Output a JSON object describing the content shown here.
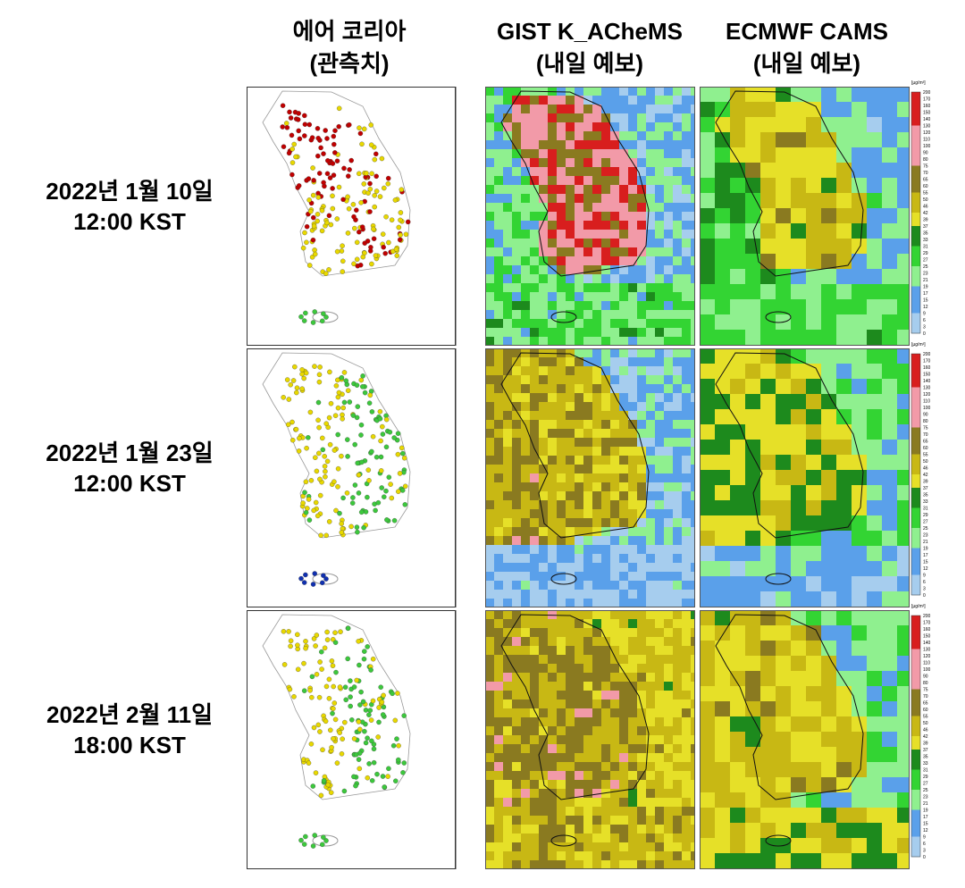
{
  "columns": [
    {
      "title": "에어 코리아",
      "subtitle": "(관측치)"
    },
    {
      "title": "GIST K_ACheMS",
      "subtitle": "(내일 예보)"
    },
    {
      "title": "ECMWF CAMS",
      "subtitle": "(내일 예보)"
    }
  ],
  "rows": [
    {
      "date": "2022년 1월 10일",
      "time": "12:00 KST"
    },
    {
      "date": "2022년 1월 23일",
      "time": "12:00 KST"
    },
    {
      "date": "2022년 2월 11일",
      "time": "18:00 KST"
    }
  ],
  "colorbar": {
    "unit": "[µg/m³]",
    "ticks": [
      "200",
      "170",
      "160",
      "150",
      "140",
      "130",
      "120",
      "110",
      "100",
      "90",
      "80",
      "75",
      "70",
      "65",
      "60",
      "55",
      "50",
      "46",
      "42",
      "39",
      "37",
      "35",
      "33",
      "31",
      "29",
      "27",
      "25",
      "23",
      "21",
      "19",
      "17",
      "15",
      "12",
      "9",
      "6",
      "3",
      "0"
    ]
  }
}
